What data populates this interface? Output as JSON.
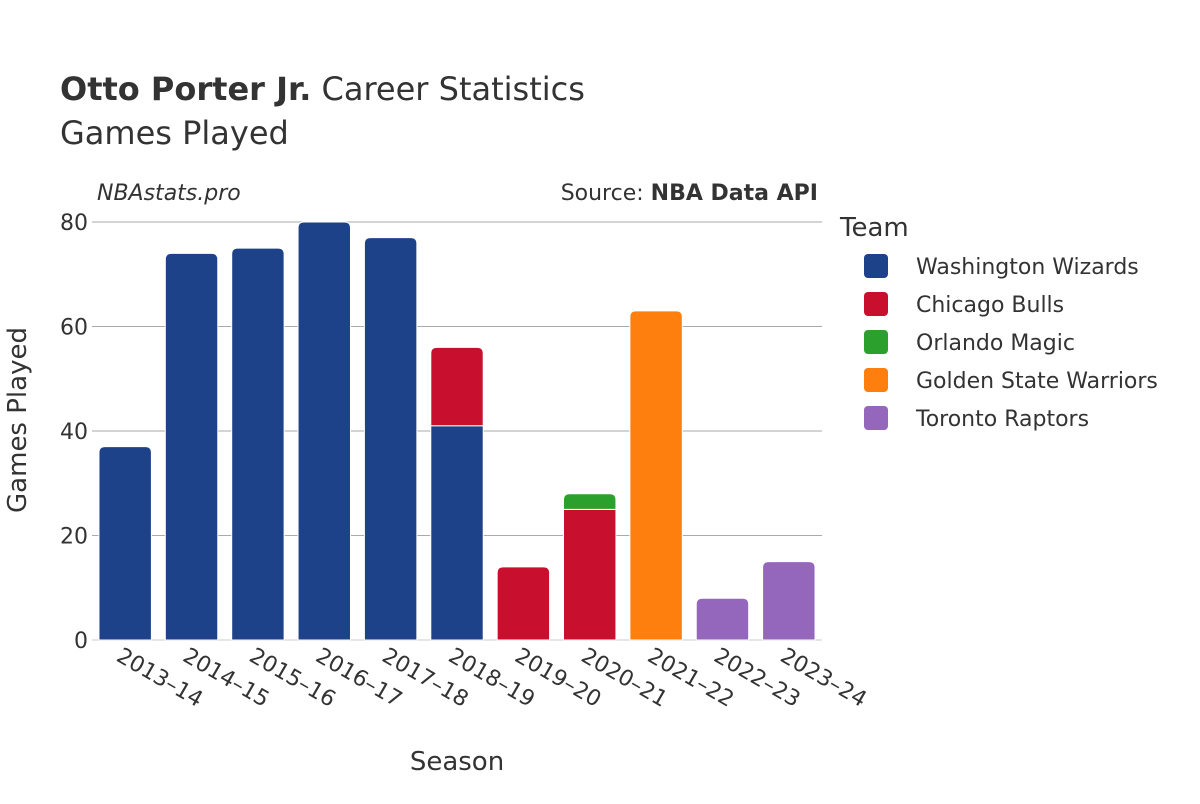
{
  "header": {
    "player_name": "Otto Porter Jr.",
    "title_suffix": " Career Statistics",
    "subtitle": "Games Played",
    "watermark": "NBAstats.pro",
    "source_prefix": "Source: ",
    "source_name": "NBA Data API"
  },
  "legend": {
    "title": "Team",
    "placement": "right"
  },
  "chart_data": {
    "type": "bar",
    "stacked": true,
    "xlabel": "Season",
    "ylabel": "Games Played",
    "ylim": [
      0,
      80
    ],
    "yticks": [
      0,
      20,
      40,
      60,
      80
    ],
    "grid": true,
    "categories": [
      "2013–14",
      "2014–15",
      "2015–16",
      "2016–17",
      "2017–18",
      "2018–19",
      "2019–20",
      "2020–21",
      "2021–22",
      "2022–23",
      "2023–24"
    ],
    "series": [
      {
        "name": "Washington Wizards",
        "color": "#1d428a",
        "values": [
          37,
          74,
          75,
          80,
          77,
          41,
          0,
          0,
          0,
          0,
          0
        ]
      },
      {
        "name": "Chicago Bulls",
        "color": "#c8102e",
        "values": [
          0,
          0,
          0,
          0,
          0,
          15,
          14,
          25,
          0,
          0,
          0
        ]
      },
      {
        "name": "Orlando Magic",
        "color": "#2ca02c",
        "values": [
          0,
          0,
          0,
          0,
          0,
          0,
          0,
          3,
          0,
          0,
          0
        ]
      },
      {
        "name": "Golden State Warriors",
        "color": "#ff7f0e",
        "values": [
          0,
          0,
          0,
          0,
          0,
          0,
          0,
          0,
          63,
          0,
          0
        ]
      },
      {
        "name": "Toronto Raptors",
        "color": "#9467bd",
        "values": [
          0,
          0,
          0,
          0,
          0,
          0,
          0,
          0,
          0,
          8,
          15
        ]
      }
    ]
  }
}
